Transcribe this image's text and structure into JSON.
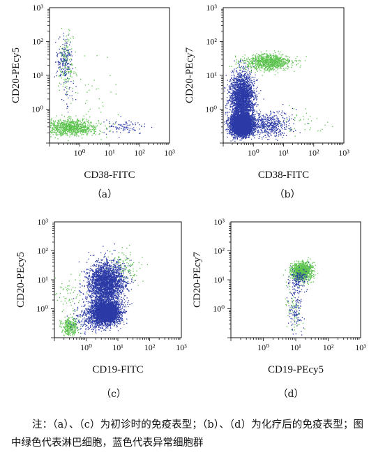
{
  "colors": {
    "lymphocyte": "#5cc24e",
    "abnormal": "#2b3aa6",
    "axis": "#111111"
  },
  "chart_data": [
    {
      "id": "a",
      "type": "scatter",
      "panel_label": "（a）",
      "xlabel": "CD38-FITC",
      "ylabel": "CD20-PEcy5",
      "xscale": "log",
      "yscale": "log",
      "xlim": [
        0.1,
        1000
      ],
      "ylim": [
        0.1,
        1000
      ],
      "tick_labels": [
        "10⁰",
        "10¹",
        "10²",
        "10³"
      ],
      "grid": false,
      "legend": "none",
      "series": [
        {
          "color_key": "lymphocyte",
          "clusters": [
            {
              "x": 0.5,
              "y": 0.3,
              "sx": 0.45,
              "sy": 0.12,
              "n": 900
            },
            {
              "x": 0.35,
              "y": 20,
              "sx": 0.12,
              "sy": 0.45,
              "n": 160
            },
            {
              "x": 3,
              "y": 3,
              "sx": 0.4,
              "sy": 0.5,
              "n": 40
            }
          ]
        },
        {
          "color_key": "abnormal",
          "clusters": [
            {
              "x": 0.3,
              "y": 30,
              "sx": 0.13,
              "sy": 0.3,
              "n": 160
            },
            {
              "x": 30,
              "y": 0.3,
              "sx": 0.35,
              "sy": 0.1,
              "n": 90
            },
            {
              "x": 0.4,
              "y": 3,
              "sx": 0.15,
              "sy": 0.35,
              "n": 30
            }
          ]
        }
      ]
    },
    {
      "id": "b",
      "type": "scatter",
      "panel_label": "（b）",
      "xlabel": "CD38-FITC",
      "ylabel": "CD20-PEcy7",
      "xscale": "log",
      "yscale": "log",
      "xlim": [
        0.1,
        1000
      ],
      "ylim": [
        0.1,
        1000
      ],
      "tick_labels": [
        "10⁰",
        "10¹",
        "10²",
        "10³"
      ],
      "grid": false,
      "legend": "none",
      "series": [
        {
          "color_key": "lymphocyte",
          "clusters": [
            {
              "x": 3,
              "y": 25,
              "sx": 0.4,
              "sy": 0.12,
              "n": 900
            },
            {
              "x": 50,
              "y": 0.4,
              "sx": 0.4,
              "sy": 0.2,
              "n": 40
            }
          ]
        },
        {
          "color_key": "abnormal",
          "clusters": [
            {
              "x": 0.4,
              "y": 0.35,
              "sx": 0.18,
              "sy": 0.15,
              "n": 4000
            },
            {
              "x": 0.4,
              "y": 2,
              "sx": 0.2,
              "sy": 0.38,
              "n": 2600
            },
            {
              "x": 3,
              "y": 0.35,
              "sx": 0.35,
              "sy": 0.2,
              "n": 500
            }
          ]
        }
      ]
    },
    {
      "id": "c",
      "type": "scatter",
      "panel_label": "（c）",
      "xlabel": "CD19-FITC",
      "ylabel": "CD20-PEcy5",
      "xscale": "log",
      "yscale": "log",
      "xlim": [
        0.1,
        1000
      ],
      "ylim": [
        0.1,
        1000
      ],
      "tick_labels": [
        "10⁰",
        "10¹",
        "10²",
        "10³"
      ],
      "grid": false,
      "legend": "none",
      "series": [
        {
          "color_key": "lymphocyte",
          "clusters": [
            {
              "x": 0.3,
              "y": 0.25,
              "sx": 0.13,
              "sy": 0.15,
              "n": 300
            },
            {
              "x": 15,
              "y": 25,
              "sx": 0.3,
              "sy": 0.3,
              "n": 130
            },
            {
              "x": 0.3,
              "y": 3,
              "sx": 0.2,
              "sy": 0.35,
              "n": 60
            }
          ]
        },
        {
          "color_key": "abnormal",
          "clusters": [
            {
              "x": 4,
              "y": 0.8,
              "sx": 0.22,
              "sy": 0.2,
              "n": 3500
            },
            {
              "x": 4,
              "y": 8,
              "sx": 0.28,
              "sy": 0.35,
              "n": 2500
            },
            {
              "x": 1.5,
              "y": 0.5,
              "sx": 0.3,
              "sy": 0.25,
              "n": 300
            }
          ]
        }
      ]
    },
    {
      "id": "d",
      "type": "scatter",
      "panel_label": "（d）",
      "xlabel": "CD19-PEcy5",
      "ylabel": "CD20-PEcy7",
      "xscale": "log",
      "yscale": "log",
      "xlim": [
        0.1,
        1000
      ],
      "ylim": [
        0.1,
        1000
      ],
      "tick_labels": [
        "10⁰",
        "10¹",
        "10²",
        "10³"
      ],
      "grid": false,
      "legend": "none",
      "series": [
        {
          "color_key": "lymphocyte",
          "clusters": [
            {
              "x": 15,
              "y": 20,
              "sx": 0.16,
              "sy": 0.15,
              "n": 1100
            },
            {
              "x": 8,
              "y": 1,
              "sx": 0.15,
              "sy": 0.35,
              "n": 60
            }
          ]
        },
        {
          "color_key": "abnormal",
          "clusters": [
            {
              "x": 10,
              "y": 1,
              "sx": 0.12,
              "sy": 0.45,
              "n": 120
            },
            {
              "x": 12,
              "y": 10,
              "sx": 0.14,
              "sy": 0.22,
              "n": 150
            }
          ]
        }
      ]
    }
  ],
  "note": "注：（a）、（c）为初诊时的免疫表型；（b）、（d）为化疗后的免疫表型；图中绿色代表淋巴细胞，蓝色代表异常细胞群"
}
